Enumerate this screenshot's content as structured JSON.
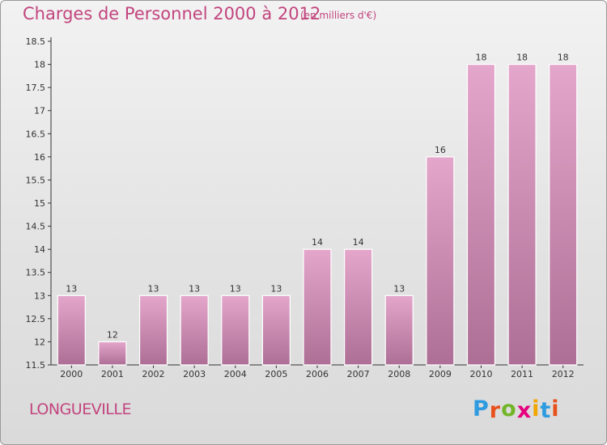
{
  "header": {
    "title": "Charges de Personnel 2000 à 2012",
    "unit": "(en milliers d'€)"
  },
  "footer": {
    "commune": "LONGUEVILLE",
    "brand_letters": [
      {
        "ch": "P",
        "color": "#2e9be0"
      },
      {
        "ch": "r",
        "color": "#e8511c"
      },
      {
        "ch": "o",
        "color": "#73b52a"
      },
      {
        "ch": "x",
        "color": "#e6007e"
      },
      {
        "ch": "i",
        "color": "#f2a600"
      },
      {
        "ch": "t",
        "color": "#2e9be0"
      },
      {
        "ch": "i",
        "color": "#e8511c"
      }
    ]
  },
  "colors": {
    "accent": "#c2457e",
    "bar_top": "#e4a6cb",
    "bar_bottom": "#ad6f95",
    "bar_edge": "#ffffff"
  },
  "chart_data": {
    "type": "bar",
    "title": "Charges de Personnel 2000 à 2012",
    "subtitle": "(en milliers d'€)",
    "categories": [
      "2000",
      "2001",
      "2002",
      "2003",
      "2004",
      "2005",
      "2006",
      "2007",
      "2008",
      "2009",
      "2010",
      "2011",
      "2012"
    ],
    "values": [
      13,
      12,
      13,
      13,
      13,
      13,
      14,
      14,
      13,
      16,
      18,
      18,
      18
    ],
    "ylim": [
      11.5,
      18.5
    ],
    "yticks": [
      "11.5",
      "12",
      "12.5",
      "13",
      "13.5",
      "14",
      "14.5",
      "15",
      "15.5",
      "16",
      "16.5",
      "17",
      "17.5",
      "18",
      "18.5"
    ],
    "grid": false,
    "legend": "none"
  }
}
